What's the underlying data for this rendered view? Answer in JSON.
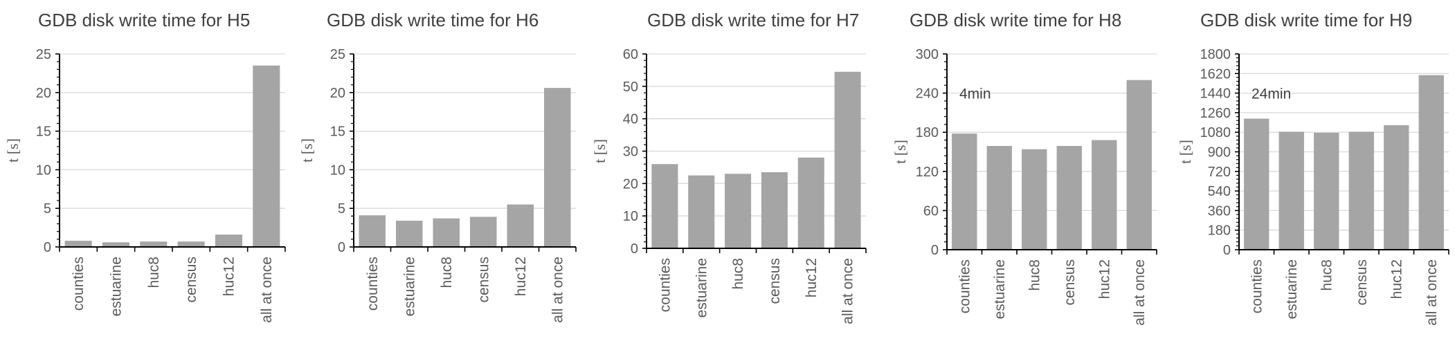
{
  "chart_data": [
    {
      "type": "bar",
      "title": "GDB disk write time for H5",
      "ylabel": "t [s]",
      "categories": [
        "counties",
        "estuarine",
        "huc8",
        "census",
        "huc12",
        "all at once"
      ],
      "values": [
        0.8,
        0.6,
        0.7,
        0.7,
        1.6,
        23.5
      ],
      "ylim": [
        0,
        25
      ],
      "yticks": [
        0,
        5,
        10,
        15,
        20,
        25
      ],
      "grid": true,
      "color": "#a5a5a5"
    },
    {
      "type": "bar",
      "title": "GDB disk write time for H6",
      "ylabel": "t [s]",
      "categories": [
        "counties",
        "estuarine",
        "huc8",
        "census",
        "huc12",
        "all at once"
      ],
      "values": [
        4.1,
        3.4,
        3.7,
        3.9,
        5.5,
        20.6
      ],
      "ylim": [
        0,
        25
      ],
      "yticks": [
        0,
        5,
        10,
        15,
        20,
        25
      ],
      "grid": true,
      "color": "#a5a5a5"
    },
    {
      "type": "bar",
      "title": "GDB disk write time for H7",
      "ylabel": "t [s]",
      "categories": [
        "counties",
        "estuarine",
        "huc8",
        "census",
        "huc12",
        "all at once"
      ],
      "values": [
        26,
        22.5,
        23,
        23.5,
        28,
        54.5
      ],
      "ylim": [
        0,
        60
      ],
      "yticks": [
        0,
        10,
        20,
        30,
        40,
        50,
        60
      ],
      "grid": true,
      "color": "#a5a5a5"
    },
    {
      "type": "bar",
      "title": "GDB disk write time for H8",
      "ylabel": "t [s]",
      "categories": [
        "counties",
        "estuarine",
        "huc8",
        "census",
        "huc12",
        "all at once"
      ],
      "values": [
        178,
        159,
        154,
        159,
        168,
        260
      ],
      "ylim": [
        0,
        300
      ],
      "yticks": [
        0,
        60,
        120,
        180,
        240,
        300
      ],
      "reference_line": {
        "value": 240,
        "label": "4min"
      },
      "grid": true,
      "color": "#a5a5a5"
    },
    {
      "type": "bar",
      "title": "GDB disk write time for H9",
      "ylabel": "t [s]",
      "categories": [
        "counties",
        "estuarine",
        "huc8",
        "census",
        "huc12",
        "all at once"
      ],
      "values": [
        1205,
        1085,
        1075,
        1085,
        1145,
        1605
      ],
      "ylim": [
        0,
        1800
      ],
      "yticks": [
        0,
        180,
        360,
        540,
        720,
        900,
        1080,
        1260,
        1440,
        1620,
        1800
      ],
      "reference_line": {
        "value": 1440,
        "label": "24min"
      },
      "grid": true,
      "color": "#a5a5a5"
    }
  ]
}
